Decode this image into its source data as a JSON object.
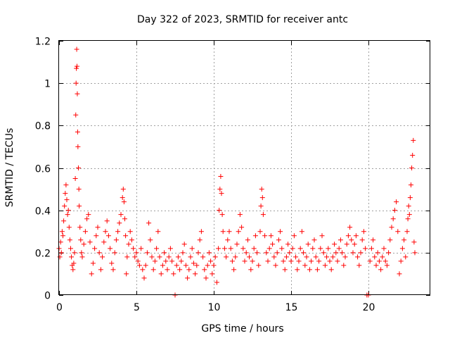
{
  "chart_data": {
    "type": "scatter",
    "title": "Day 322 of 2023, SRMTID for receiver antc",
    "xlabel": "GPS time / hours",
    "ylabel": "SRMTID / TECUs",
    "xlim": [
      0,
      24
    ],
    "ylim": [
      0,
      1.2
    ],
    "xticks": [
      0,
      5,
      10,
      15,
      20
    ],
    "yticks": [
      0,
      0.2,
      0.4,
      0.6,
      0.8,
      1,
      1.2
    ],
    "xtick_labels": [
      "0",
      "5",
      "10",
      "15",
      "20"
    ],
    "ytick_labels": [
      "0",
      "0.2",
      "0.4",
      "0.6",
      "0.8",
      "1",
      "1.2"
    ],
    "grid": true,
    "marker": "plus",
    "color": "#ff0000",
    "series": [
      {
        "name": "SRMTID",
        "points": [
          [
            0.0,
            0.22
          ],
          [
            0.05,
            0.18
          ],
          [
            0.1,
            0.25
          ],
          [
            0.15,
            0.2
          ],
          [
            0.2,
            0.3
          ],
          [
            0.25,
            0.28
          ],
          [
            0.3,
            0.35
          ],
          [
            0.35,
            0.42
          ],
          [
            0.4,
            0.48
          ],
          [
            0.45,
            0.52
          ],
          [
            0.5,
            0.45
          ],
          [
            0.55,
            0.38
          ],
          [
            0.6,
            0.4
          ],
          [
            0.65,
            0.32
          ],
          [
            0.7,
            0.26
          ],
          [
            0.75,
            0.22
          ],
          [
            0.8,
            0.18
          ],
          [
            0.85,
            0.14
          ],
          [
            0.9,
            0.12
          ],
          [
            0.95,
            0.15
          ],
          [
            1.0,
            0.2
          ],
          [
            1.05,
            0.55
          ],
          [
            1.08,
            0.85
          ],
          [
            1.1,
            1.0
          ],
          [
            1.12,
            1.07
          ],
          [
            1.14,
            1.16
          ],
          [
            1.16,
            1.08
          ],
          [
            1.18,
            0.95
          ],
          [
            1.2,
            0.77
          ],
          [
            1.22,
            0.7
          ],
          [
            1.25,
            0.6
          ],
          [
            1.28,
            0.5
          ],
          [
            1.3,
            0.42
          ],
          [
            1.35,
            0.32
          ],
          [
            1.4,
            0.26
          ],
          [
            1.45,
            0.2
          ],
          [
            1.5,
            0.18
          ],
          [
            1.6,
            0.24
          ],
          [
            1.7,
            0.3
          ],
          [
            1.8,
            0.36
          ],
          [
            1.9,
            0.38
          ],
          [
            2.0,
            0.25
          ],
          [
            2.1,
            0.1
          ],
          [
            2.2,
            0.15
          ],
          [
            2.3,
            0.22
          ],
          [
            2.4,
            0.28
          ],
          [
            2.5,
            0.32
          ],
          [
            2.6,
            0.2
          ],
          [
            2.7,
            0.12
          ],
          [
            2.8,
            0.18
          ],
          [
            2.9,
            0.25
          ],
          [
            3.0,
            0.3
          ],
          [
            3.1,
            0.35
          ],
          [
            3.2,
            0.28
          ],
          [
            3.3,
            0.22
          ],
          [
            3.4,
            0.15
          ],
          [
            3.5,
            0.12
          ],
          [
            3.6,
            0.2
          ],
          [
            3.7,
            0.26
          ],
          [
            3.8,
            0.3
          ],
          [
            3.9,
            0.34
          ],
          [
            4.0,
            0.38
          ],
          [
            4.1,
            0.46
          ],
          [
            4.15,
            0.5
          ],
          [
            4.2,
            0.44
          ],
          [
            4.25,
            0.36
          ],
          [
            4.3,
            0.28
          ],
          [
            4.35,
            0.1
          ],
          [
            4.4,
            0.18
          ],
          [
            4.5,
            0.24
          ],
          [
            4.6,
            0.3
          ],
          [
            4.7,
            0.26
          ],
          [
            4.8,
            0.22
          ],
          [
            4.9,
            0.18
          ],
          [
            5.0,
            0.2
          ],
          [
            5.1,
            0.16
          ],
          [
            5.2,
            0.14
          ],
          [
            5.3,
            0.22
          ],
          [
            5.4,
            0.12
          ],
          [
            5.5,
            0.08
          ],
          [
            5.6,
            0.14
          ],
          [
            5.7,
            0.2
          ],
          [
            5.8,
            0.34
          ],
          [
            5.9,
            0.26
          ],
          [
            6.0,
            0.18
          ],
          [
            6.1,
            0.12
          ],
          [
            6.2,
            0.16
          ],
          [
            6.3,
            0.22
          ],
          [
            6.4,
            0.3
          ],
          [
            6.5,
            0.18
          ],
          [
            6.6,
            0.1
          ],
          [
            6.7,
            0.14
          ],
          [
            6.8,
            0.2
          ],
          [
            6.9,
            0.16
          ],
          [
            7.0,
            0.12
          ],
          [
            7.1,
            0.18
          ],
          [
            7.2,
            0.22
          ],
          [
            7.3,
            0.16
          ],
          [
            7.4,
            0.1
          ],
          [
            7.5,
            0.0
          ],
          [
            7.6,
            0.14
          ],
          [
            7.7,
            0.18
          ],
          [
            7.8,
            0.12
          ],
          [
            7.9,
            0.16
          ],
          [
            8.0,
            0.2
          ],
          [
            8.1,
            0.24
          ],
          [
            8.2,
            0.14
          ],
          [
            8.3,
            0.08
          ],
          [
            8.4,
            0.12
          ],
          [
            8.5,
            0.18
          ],
          [
            8.6,
            0.22
          ],
          [
            8.7,
            0.15
          ],
          [
            8.8,
            0.1
          ],
          [
            8.9,
            0.14
          ],
          [
            9.0,
            0.2
          ],
          [
            9.1,
            0.26
          ],
          [
            9.2,
            0.3
          ],
          [
            9.3,
            0.18
          ],
          [
            9.4,
            0.12
          ],
          [
            9.5,
            0.08
          ],
          [
            9.6,
            0.14
          ],
          [
            9.7,
            0.2
          ],
          [
            9.8,
            0.16
          ],
          [
            9.9,
            0.1
          ],
          [
            10.0,
            0.14
          ],
          [
            10.1,
            0.18
          ],
          [
            10.2,
            0.06
          ],
          [
            10.3,
            0.22
          ],
          [
            10.35,
            0.4
          ],
          [
            10.4,
            0.5
          ],
          [
            10.45,
            0.56
          ],
          [
            10.5,
            0.48
          ],
          [
            10.55,
            0.38
          ],
          [
            10.6,
            0.3
          ],
          [
            10.7,
            0.22
          ],
          [
            10.8,
            0.18
          ],
          [
            10.9,
            0.26
          ],
          [
            11.0,
            0.3
          ],
          [
            11.1,
            0.22
          ],
          [
            11.2,
            0.16
          ],
          [
            11.3,
            0.12
          ],
          [
            11.4,
            0.18
          ],
          [
            11.5,
            0.24
          ],
          [
            11.6,
            0.3
          ],
          [
            11.7,
            0.38
          ],
          [
            11.8,
            0.32
          ],
          [
            11.9,
            0.22
          ],
          [
            12.0,
            0.16
          ],
          [
            12.1,
            0.2
          ],
          [
            12.2,
            0.26
          ],
          [
            12.3,
            0.18
          ],
          [
            12.4,
            0.12
          ],
          [
            12.5,
            0.16
          ],
          [
            12.6,
            0.22
          ],
          [
            12.7,
            0.28
          ],
          [
            12.8,
            0.2
          ],
          [
            12.9,
            0.14
          ],
          [
            13.0,
            0.3
          ],
          [
            13.05,
            0.42
          ],
          [
            13.1,
            0.5
          ],
          [
            13.15,
            0.46
          ],
          [
            13.2,
            0.38
          ],
          [
            13.3,
            0.28
          ],
          [
            13.4,
            0.2
          ],
          [
            13.5,
            0.16
          ],
          [
            13.6,
            0.22
          ],
          [
            13.7,
            0.28
          ],
          [
            13.8,
            0.24
          ],
          [
            13.9,
            0.18
          ],
          [
            14.0,
            0.14
          ],
          [
            14.1,
            0.2
          ],
          [
            14.2,
            0.26
          ],
          [
            14.3,
            0.3
          ],
          [
            14.4,
            0.22
          ],
          [
            14.5,
            0.16
          ],
          [
            14.6,
            0.12
          ],
          [
            14.7,
            0.18
          ],
          [
            14.8,
            0.24
          ],
          [
            14.9,
            0.2
          ],
          [
            15.0,
            0.16
          ],
          [
            15.1,
            0.22
          ],
          [
            15.2,
            0.28
          ],
          [
            15.3,
            0.18
          ],
          [
            15.4,
            0.12
          ],
          [
            15.5,
            0.16
          ],
          [
            15.6,
            0.22
          ],
          [
            15.7,
            0.3
          ],
          [
            15.8,
            0.2
          ],
          [
            15.9,
            0.14
          ],
          [
            16.0,
            0.18
          ],
          [
            16.1,
            0.24
          ],
          [
            16.2,
            0.12
          ],
          [
            16.3,
            0.16
          ],
          [
            16.4,
            0.22
          ],
          [
            16.5,
            0.26
          ],
          [
            16.6,
            0.18
          ],
          [
            16.7,
            0.12
          ],
          [
            16.8,
            0.16
          ],
          [
            16.9,
            0.22
          ],
          [
            17.0,
            0.28
          ],
          [
            17.1,
            0.2
          ],
          [
            17.2,
            0.14
          ],
          [
            17.3,
            0.18
          ],
          [
            17.4,
            0.22
          ],
          [
            17.5,
            0.16
          ],
          [
            17.6,
            0.12
          ],
          [
            17.7,
            0.18
          ],
          [
            17.8,
            0.24
          ],
          [
            17.9,
            0.2
          ],
          [
            18.0,
            0.16
          ],
          [
            18.1,
            0.22
          ],
          [
            18.2,
            0.26
          ],
          [
            18.3,
            0.2
          ],
          [
            18.4,
            0.14
          ],
          [
            18.5,
            0.18
          ],
          [
            18.6,
            0.24
          ],
          [
            18.7,
            0.28
          ],
          [
            18.8,
            0.32
          ],
          [
            18.9,
            0.26
          ],
          [
            19.0,
            0.2
          ],
          [
            19.1,
            0.24
          ],
          [
            19.2,
            0.28
          ],
          [
            19.3,
            0.18
          ],
          [
            19.4,
            0.14
          ],
          [
            19.5,
            0.2
          ],
          [
            19.6,
            0.26
          ],
          [
            19.7,
            0.3
          ],
          [
            19.8,
            0.22
          ],
          [
            19.9,
            0.0
          ],
          [
            20.0,
            0.0
          ],
          [
            20.1,
            0.16
          ],
          [
            20.2,
            0.22
          ],
          [
            20.3,
            0.26
          ],
          [
            20.4,
            0.18
          ],
          [
            20.5,
            0.14
          ],
          [
            20.6,
            0.2
          ],
          [
            20.7,
            0.16
          ],
          [
            20.8,
            0.12
          ],
          [
            20.9,
            0.18
          ],
          [
            21.0,
            0.22
          ],
          [
            21.1,
            0.16
          ],
          [
            21.2,
            0.14
          ],
          [
            21.3,
            0.2
          ],
          [
            21.4,
            0.26
          ],
          [
            21.5,
            0.32
          ],
          [
            21.6,
            0.36
          ],
          [
            21.7,
            0.4
          ],
          [
            21.8,
            0.44
          ],
          [
            21.9,
            0.3
          ],
          [
            22.0,
            0.1
          ],
          [
            22.1,
            0.16
          ],
          [
            22.2,
            0.22
          ],
          [
            22.3,
            0.26
          ],
          [
            22.4,
            0.18
          ],
          [
            22.5,
            0.3
          ],
          [
            22.55,
            0.36
          ],
          [
            22.6,
            0.42
          ],
          [
            22.65,
            0.38
          ],
          [
            22.7,
            0.46
          ],
          [
            22.75,
            0.52
          ],
          [
            22.8,
            0.6
          ],
          [
            22.85,
            0.66
          ],
          [
            22.9,
            0.73
          ],
          [
            22.95,
            0.25
          ],
          [
            23.0,
            0.2
          ]
        ]
      }
    ]
  }
}
